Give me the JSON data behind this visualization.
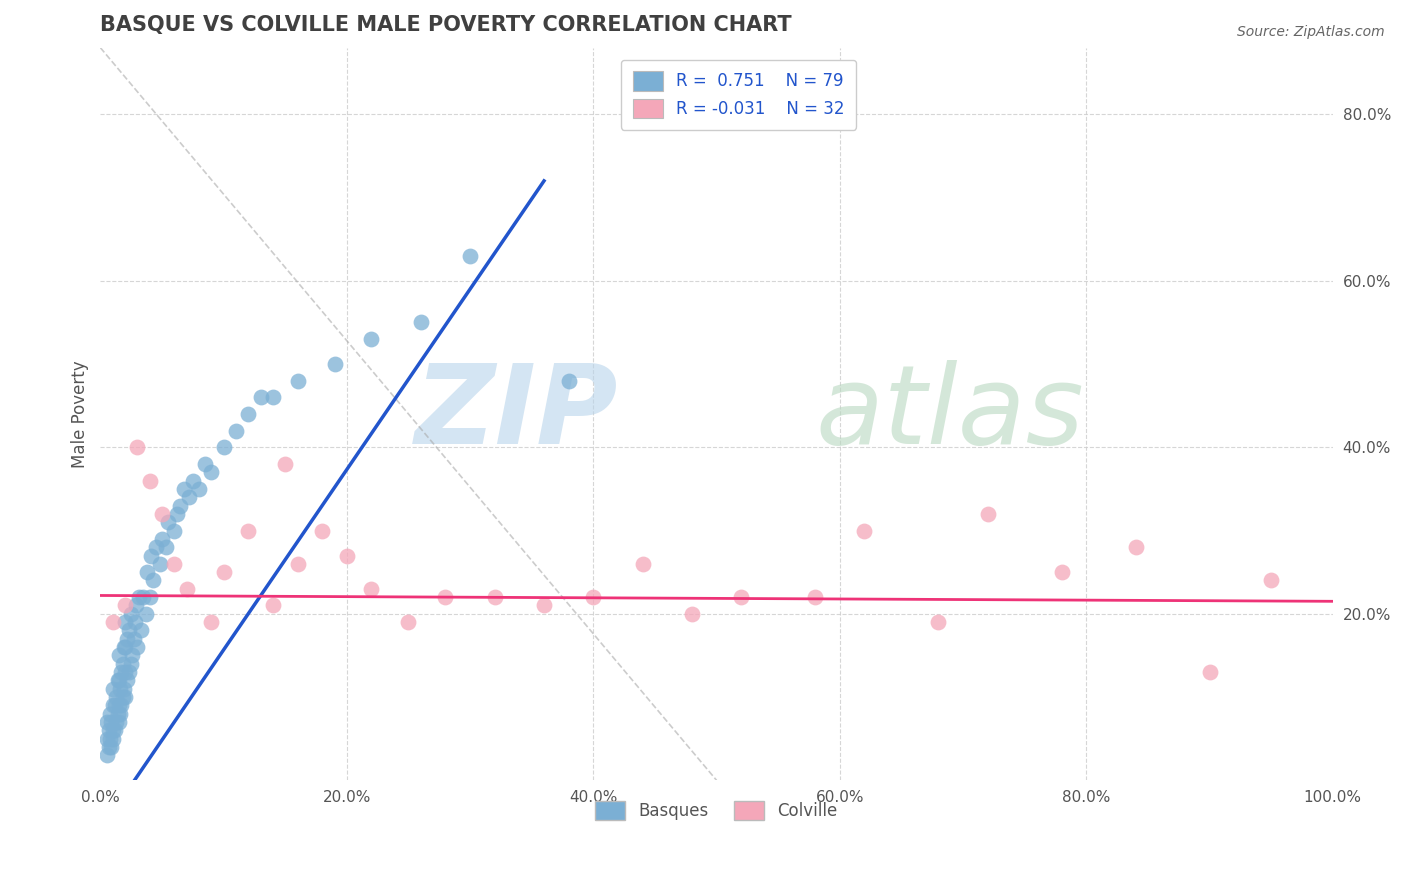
{
  "title": "BASQUE VS COLVILLE MALE POVERTY CORRELATION CHART",
  "source": "Source: ZipAtlas.com",
  "ylabel": "Male Poverty",
  "xlim": [
    0.0,
    1.0
  ],
  "ylim": [
    0.0,
    0.88
  ],
  "xtick_labels": [
    "0.0%",
    "20.0%",
    "40.0%",
    "60.0%",
    "80.0%",
    "100.0%"
  ],
  "xtick_vals": [
    0.0,
    0.2,
    0.4,
    0.6,
    0.8,
    1.0
  ],
  "ytick_labels": [
    "20.0%",
    "40.0%",
    "60.0%",
    "80.0%"
  ],
  "ytick_vals": [
    0.2,
    0.4,
    0.6,
    0.8
  ],
  "blue_color": "#7BAFD4",
  "pink_color": "#F4A7B9",
  "line_blue": "#2255CC",
  "line_pink": "#EE3377",
  "title_color": "#404040",
  "r_color": "#2255CC",
  "blue_line_x": [
    0.0,
    0.36
  ],
  "blue_line_y": [
    -0.06,
    0.72
  ],
  "pink_line_x": [
    0.0,
    1.0
  ],
  "pink_line_y": [
    0.222,
    0.215
  ],
  "dash_line_x": [
    0.0,
    0.5
  ],
  "dash_line_y": [
    0.88,
    0.0
  ],
  "basque_x": [
    0.005,
    0.005,
    0.005,
    0.007,
    0.007,
    0.008,
    0.008,
    0.009,
    0.009,
    0.01,
    0.01,
    0.01,
    0.01,
    0.012,
    0.012,
    0.013,
    0.013,
    0.014,
    0.014,
    0.015,
    0.015,
    0.015,
    0.015,
    0.016,
    0.016,
    0.017,
    0.017,
    0.018,
    0.018,
    0.019,
    0.019,
    0.02,
    0.02,
    0.02,
    0.02,
    0.022,
    0.022,
    0.023,
    0.023,
    0.025,
    0.025,
    0.026,
    0.027,
    0.028,
    0.029,
    0.03,
    0.031,
    0.033,
    0.035,
    0.037,
    0.038,
    0.04,
    0.041,
    0.043,
    0.045,
    0.048,
    0.05,
    0.053,
    0.055,
    0.06,
    0.062,
    0.065,
    0.068,
    0.072,
    0.075,
    0.08,
    0.085,
    0.09,
    0.1,
    0.11,
    0.12,
    0.13,
    0.14,
    0.16,
    0.19,
    0.22,
    0.26,
    0.3,
    0.38
  ],
  "basque_y": [
    0.03,
    0.05,
    0.07,
    0.04,
    0.06,
    0.05,
    0.08,
    0.04,
    0.07,
    0.05,
    0.06,
    0.09,
    0.11,
    0.06,
    0.09,
    0.07,
    0.1,
    0.08,
    0.12,
    0.07,
    0.09,
    0.12,
    0.15,
    0.08,
    0.11,
    0.09,
    0.13,
    0.1,
    0.14,
    0.11,
    0.16,
    0.1,
    0.13,
    0.16,
    0.19,
    0.12,
    0.17,
    0.13,
    0.18,
    0.14,
    0.2,
    0.15,
    0.17,
    0.19,
    0.21,
    0.16,
    0.22,
    0.18,
    0.22,
    0.2,
    0.25,
    0.22,
    0.27,
    0.24,
    0.28,
    0.26,
    0.29,
    0.28,
    0.31,
    0.3,
    0.32,
    0.33,
    0.35,
    0.34,
    0.36,
    0.35,
    0.38,
    0.37,
    0.4,
    0.42,
    0.44,
    0.46,
    0.46,
    0.48,
    0.5,
    0.53,
    0.55,
    0.63,
    0.48
  ],
  "colville_x": [
    0.01,
    0.02,
    0.03,
    0.04,
    0.05,
    0.06,
    0.07,
    0.09,
    0.1,
    0.12,
    0.14,
    0.15,
    0.16,
    0.18,
    0.2,
    0.22,
    0.25,
    0.28,
    0.32,
    0.36,
    0.4,
    0.44,
    0.48,
    0.52,
    0.58,
    0.62,
    0.68,
    0.72,
    0.78,
    0.84,
    0.9,
    0.95
  ],
  "colville_y": [
    0.19,
    0.21,
    0.4,
    0.36,
    0.32,
    0.26,
    0.23,
    0.19,
    0.25,
    0.3,
    0.21,
    0.38,
    0.26,
    0.3,
    0.27,
    0.23,
    0.19,
    0.22,
    0.22,
    0.21,
    0.22,
    0.26,
    0.2,
    0.22,
    0.22,
    0.3,
    0.19,
    0.32,
    0.25,
    0.28,
    0.13,
    0.24
  ]
}
